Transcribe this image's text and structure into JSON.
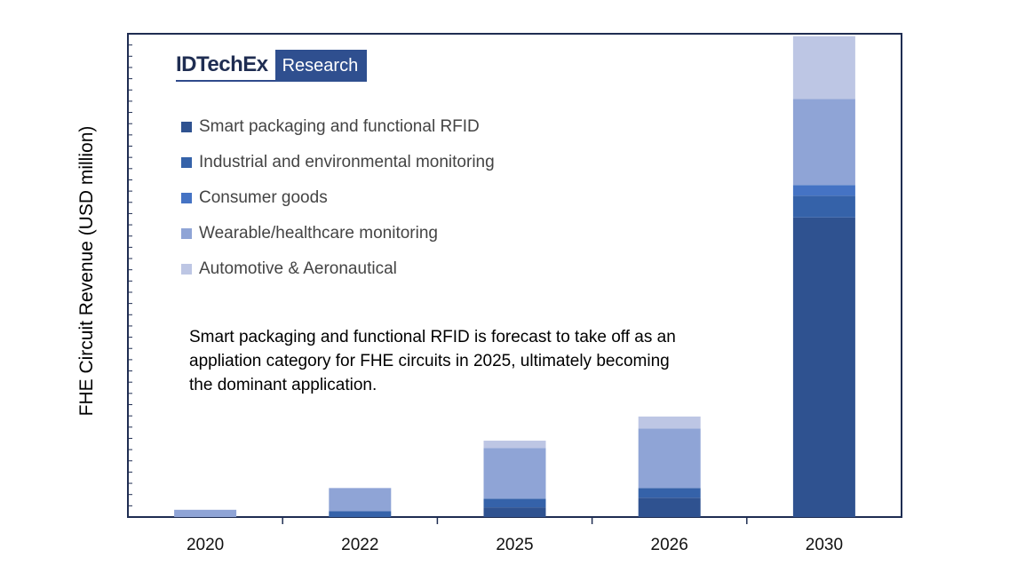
{
  "chart_data": {
    "type": "bar",
    "stacked": true,
    "title": "",
    "xlabel": "",
    "ylabel": "FHE Circuit Revenue (USD million)",
    "categories": [
      "2020",
      "2022",
      "2025",
      "2026",
      "2030"
    ],
    "ylim": [
      0,
      100
    ],
    "series": [
      {
        "name": "Smart packaging and functional RFID",
        "color": "#2f5290",
        "values": [
          0,
          0,
          2,
          4,
          62
        ]
      },
      {
        "name": "Industrial and environmental monitoring",
        "color": "#3562a9",
        "values": [
          0,
          1.2,
          1.8,
          2,
          4.5
        ]
      },
      {
        "name": "Consumer goods",
        "color": "#4573c4",
        "values": [
          0,
          0,
          0,
          0,
          2.2
        ]
      },
      {
        "name": "Wearable/healthcare monitoring",
        "color": "#8fa4d6",
        "values": [
          1.5,
          4.8,
          10.5,
          12.3,
          17.8
        ]
      },
      {
        "name": "Automotive & Aeronautical",
        "color": "#bdc6e4",
        "values": [
          0,
          0,
          1.5,
          2.5,
          13
        ]
      }
    ]
  },
  "logo": {
    "main": "IDTechEx",
    "sub": "Research"
  },
  "annotation": "Smart packaging and functional RFID is forecast to take off as an appliation category for FHE circuits in 2025, ultimately becoming the dominant application."
}
